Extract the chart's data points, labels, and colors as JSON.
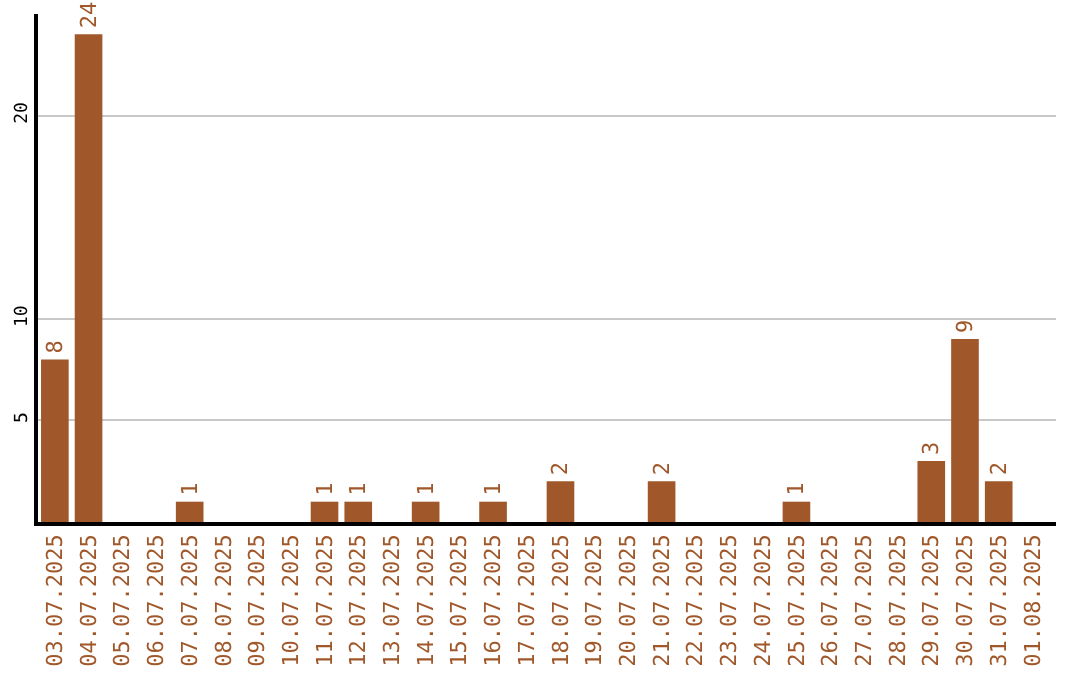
{
  "chart_data": {
    "type": "bar",
    "categories": [
      "03.07.2025",
      "04.07.2025",
      "05.07.2025",
      "06.07.2025",
      "07.07.2025",
      "08.07.2025",
      "09.07.2025",
      "10.07.2025",
      "11.07.2025",
      "12.07.2025",
      "13.07.2025",
      "14.07.2025",
      "15.07.2025",
      "16.07.2025",
      "17.07.2025",
      "18.07.2025",
      "19.07.2025",
      "20.07.2025",
      "21.07.2025",
      "22.07.2025",
      "23.07.2025",
      "24.07.2025",
      "25.07.2025",
      "26.07.2025",
      "27.07.2025",
      "28.07.2025",
      "29.07.2025",
      "30.07.2025",
      "31.07.2025",
      "01.08.2025"
    ],
    "values": [
      8,
      24,
      0,
      0,
      1,
      0,
      0,
      0,
      1,
      1,
      0,
      1,
      0,
      1,
      0,
      2,
      0,
      0,
      2,
      0,
      0,
      0,
      1,
      0,
      0,
      0,
      3,
      9,
      2,
      0
    ],
    "value_labels": [
      "8",
      "24",
      null,
      null,
      "1",
      null,
      null,
      null,
      "1",
      "1",
      null,
      "1",
      null,
      "1",
      null,
      "2",
      null,
      null,
      "2",
      null,
      null,
      null,
      "1",
      null,
      null,
      null,
      "3",
      "9",
      "2",
      null
    ],
    "color": "#a0582a",
    "ylim": [
      0,
      25
    ],
    "yticks": [
      5,
      10,
      20
    ],
    "grid": "y",
    "legend": false
  }
}
